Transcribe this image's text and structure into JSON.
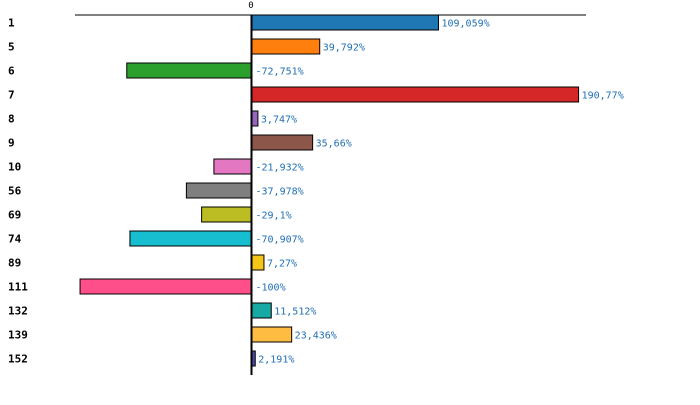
{
  "chart_data": {
    "type": "bar",
    "orientation": "horizontal",
    "title": "",
    "xlabel": "",
    "ylabel": "",
    "zero_tick_label": "0",
    "xlim": [
      -100,
      190.77
    ],
    "grid": false,
    "categories": [
      "1",
      "5",
      "6",
      "7",
      "8",
      "9",
      "10",
      "56",
      "69",
      "74",
      "89",
      "111",
      "132",
      "139",
      "152"
    ],
    "values": [
      109.059,
      39.792,
      -72.751,
      190.77,
      3.747,
      35.66,
      -21.932,
      -37.978,
      -29.1,
      -70.907,
      7.27,
      -100,
      11.512,
      23.436,
      2.191
    ],
    "value_labels": [
      "109,059%",
      "39,792%",
      "-72,751%",
      "190,77%",
      "3,747%",
      "35,66%",
      "-21,932%",
      "-37,978%",
      "-29,1%",
      "-70,907%",
      "7,27%",
      "-100%",
      "11,512%",
      "23,436%",
      "2,191%"
    ],
    "colors": [
      "#1f77b4",
      "#ff7f0e",
      "#2ca02c",
      "#d62728",
      "#9467bd",
      "#8c564b",
      "#e377c2",
      "#7f7f7f",
      "#bcbd22",
      "#17becf",
      "#f5c518",
      "#ff4f8b",
      "#17a9a3",
      "#ffbc42",
      "#4b4ba8"
    ]
  }
}
